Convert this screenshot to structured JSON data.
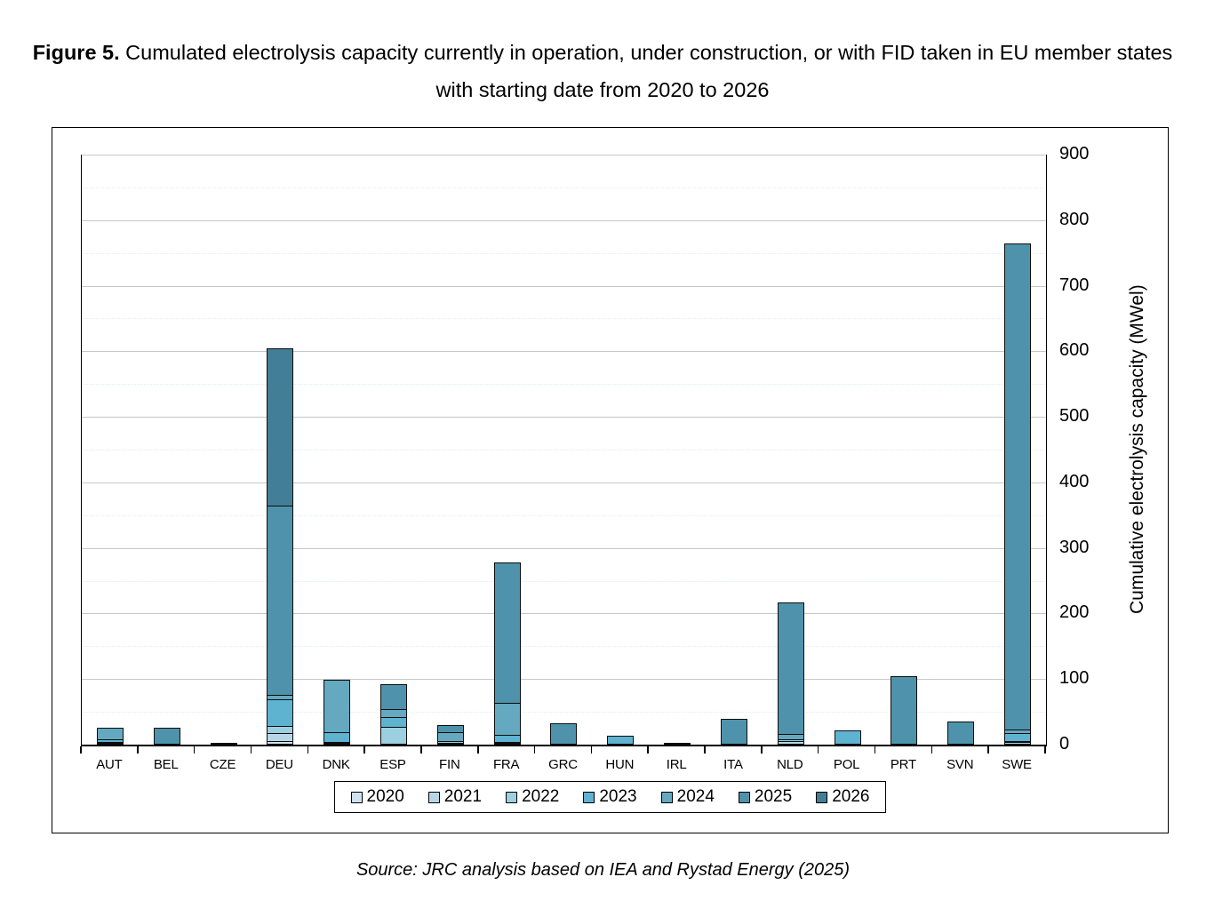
{
  "title": {
    "prefix": "Figure 5.",
    "text": " Cumulated electrolysis capacity currently in operation, under construction, or with FID taken in EU member states with starting date from 2020 to 2026"
  },
  "source": {
    "text": "Source: JRC analysis based on IEA and Rystad Energy (2025)"
  },
  "chart_data": {
    "type": "bar",
    "stacked": true,
    "title": "Cumulated electrolysis capacity in EU member states 2020-2026",
    "xlabel": "",
    "ylabel": "Cumulative electrolysis capacity (MWel)",
    "ylim": [
      0,
      900
    ],
    "yticks": [
      0,
      100,
      200,
      300,
      400,
      500,
      600,
      700,
      800,
      900
    ],
    "minor_tick_interval": 50,
    "grid": "horizontal",
    "legend_position": "bottom",
    "categories": [
      "AUT",
      "BEL",
      "CZE",
      "DEU",
      "DNK",
      "ESP",
      "FIN",
      "FRA",
      "GRC",
      "HUN",
      "IRL",
      "ITA",
      "NLD",
      "POL",
      "PRT",
      "SVN",
      "SWE"
    ],
    "series": [
      {
        "name": "2020",
        "color": "#cfe3ee",
        "values": [
          0,
          0,
          0,
          5,
          0,
          0,
          0,
          0,
          0,
          0,
          0,
          0,
          0,
          0,
          0,
          0,
          0
        ]
      },
      {
        "name": "2021",
        "color": "#b7d7e8",
        "values": [
          2,
          0,
          0,
          15,
          2,
          0,
          3,
          2,
          0,
          0,
          0,
          0,
          5,
          0,
          0,
          0,
          4
        ]
      },
      {
        "name": "2022",
        "color": "#9ccfe0",
        "values": [
          4,
          0,
          0,
          13,
          4,
          27,
          5,
          3,
          0,
          0,
          0,
          0,
          5,
          0,
          0,
          0,
          4
        ]
      },
      {
        "name": "2023",
        "color": "#5eb3d1",
        "values": [
          6,
          0,
          1,
          42,
          17,
          17,
          0,
          13,
          0,
          13,
          0,
          0,
          0,
          22,
          0,
          0,
          14
        ]
      },
      {
        "name": "2024",
        "color": "#64a9c0",
        "values": [
          19,
          0,
          2,
          10,
          82,
          14,
          15,
          52,
          0,
          0,
          0,
          0,
          10,
          0,
          0,
          0,
          8
        ]
      },
      {
        "name": "2025",
        "color": "#4e93ab",
        "values": [
          0,
          26,
          0,
          290,
          0,
          41,
          14,
          216,
          32,
          0,
          3,
          40,
          204,
          0,
          104,
          35,
          743
        ]
      },
      {
        "name": "2026",
        "color": "#427f96",
        "values": [
          0,
          0,
          0,
          242,
          0,
          0,
          0,
          0,
          0,
          0,
          0,
          0,
          0,
          0,
          0,
          0,
          0
        ]
      }
    ]
  }
}
